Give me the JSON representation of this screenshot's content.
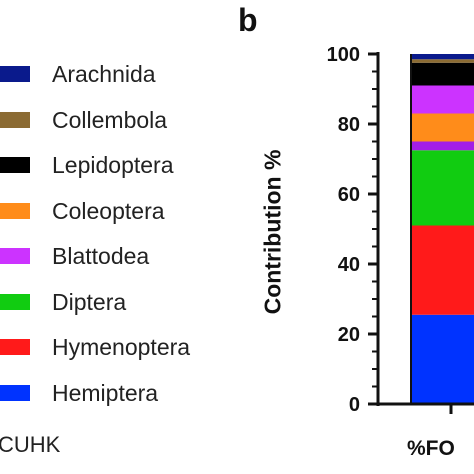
{
  "panel_left_label": "CUHK",
  "panel_letter": "b",
  "chart_data": {
    "type": "bar",
    "stacked": true,
    "title": "",
    "ylabel": "Contribution %",
    "xlabel": "",
    "ylim": [
      0,
      100
    ],
    "yticks": [
      0,
      20,
      40,
      60,
      80,
      100
    ],
    "categories": [
      "%FO"
    ],
    "series": [
      {
        "name": "Hemiptera",
        "color": "#0033ff",
        "values": [
          25.5
        ]
      },
      {
        "name": "Hymenoptera",
        "color": "#ff1a1a",
        "values": [
          25.5
        ]
      },
      {
        "name": "Diptera",
        "color": "#11cc11",
        "values": [
          21.5
        ]
      },
      {
        "name": "Blattodea",
        "color": "#a31ee6",
        "values": [
          2.5
        ]
      },
      {
        "name": "Coleoptera",
        "color": "#ff8c1a",
        "values": [
          8.0
        ]
      },
      {
        "name": "Blattodea",
        "color": "#cc33ff",
        "values": [
          8.0
        ]
      },
      {
        "name": "Lepidoptera",
        "color": "#000000",
        "values": [
          6.5
        ]
      },
      {
        "name": "Collembola",
        "color": "#8b6b33",
        "values": [
          1.0
        ]
      },
      {
        "name": "Arachnida",
        "color": "#0a1a8c",
        "values": [
          1.5
        ]
      }
    ],
    "legend": {
      "placement": "left",
      "entries": [
        {
          "label": "Arachnida",
          "color": "#0a1a8c"
        },
        {
          "label": "Collembola",
          "color": "#8b6b33"
        },
        {
          "label": "Lepidoptera",
          "color": "#000000"
        },
        {
          "label": "Coleoptera",
          "color": "#ff8c1a"
        },
        {
          "label": "Blattodea",
          "color": "#cc33ff"
        },
        {
          "label": "Diptera",
          "color": "#11cc11"
        },
        {
          "label": "Hymenoptera",
          "color": "#ff1a1a"
        },
        {
          "label": "Hemiptera",
          "color": "#0033ff"
        }
      ]
    }
  }
}
